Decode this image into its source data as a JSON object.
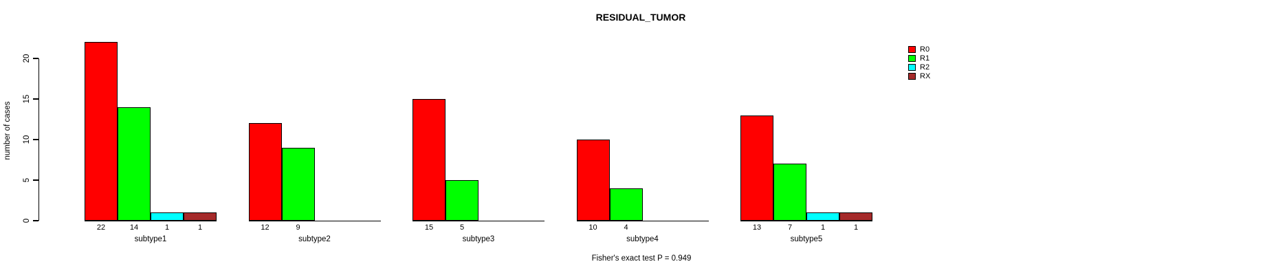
{
  "title": "RESIDUAL_TUMOR",
  "footer": "Fisher's exact test P = 0.949",
  "chart_data": {
    "type": "bar",
    "title": "RESIDUAL_TUMOR",
    "xlabel": "",
    "ylabel": "number of cases",
    "categories": [
      "subtype1",
      "subtype2",
      "subtype3",
      "subtype4",
      "subtype5"
    ],
    "series": [
      {
        "name": "R0",
        "color": "#FF0000",
        "values": [
          22,
          12,
          15,
          10,
          13
        ]
      },
      {
        "name": "R1",
        "color": "#00FF00",
        "values": [
          14,
          9,
          5,
          4,
          7
        ]
      },
      {
        "name": "R2",
        "color": "#00FFFF",
        "values": [
          1,
          0,
          0,
          0,
          1
        ]
      },
      {
        "name": "RX",
        "color": "#A52A2A",
        "values": [
          1,
          0,
          0,
          0,
          1
        ]
      }
    ],
    "yticks": [
      0,
      5,
      10,
      15,
      20
    ],
    "ylim": [
      0,
      22
    ],
    "grid": false,
    "legend_position": "top-right",
    "value_labels_shown_for_nonzero_only": true,
    "annotation": "Fisher's exact test P = 0.949",
    "colors": {
      "axis": "#000000",
      "text": "#000000",
      "background": "#FFFFFF"
    }
  }
}
